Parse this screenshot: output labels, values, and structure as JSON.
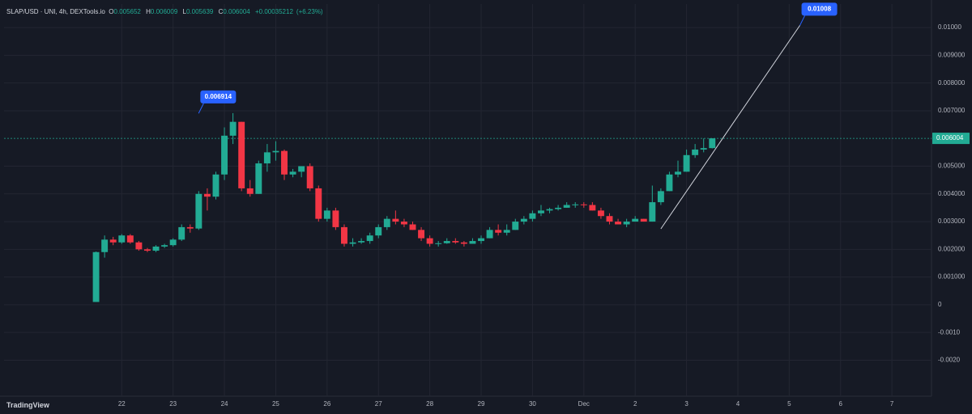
{
  "chart_data": {
    "type": "candlestick",
    "title": "SLAP/USD · UNI, 4h, DEXTools.io",
    "ohlc_letters": [
      "O",
      "H",
      "L",
      "C"
    ],
    "ohlc_values": [
      0.005652,
      0.006009,
      0.005639,
      0.006004
    ],
    "change": {
      "value": 0.00035212,
      "label": "+0.00035212"
    },
    "change_pct": {
      "value": 6.23,
      "label": "(+6.23%)"
    },
    "brand": "TradingView",
    "up_color": "#22ab94",
    "down_color": "#f23645",
    "x": [
      -12,
      -8,
      -4,
      0,
      4,
      8,
      12,
      16,
      20,
      24,
      28,
      32,
      36,
      40,
      44,
      48,
      52,
      56,
      60,
      64,
      68,
      72,
      76,
      80,
      84,
      88,
      92,
      96,
      100,
      104,
      108,
      112,
      116,
      120,
      124,
      128,
      132,
      136,
      140,
      144,
      148,
      152,
      156,
      160,
      164,
      168,
      172,
      176,
      180,
      184,
      188,
      192,
      196,
      200,
      204,
      208,
      212,
      216,
      220,
      224,
      228,
      232,
      236,
      240,
      244,
      248,
      252,
      256,
      260,
      264,
      268,
      272,
      276
    ],
    "open": [
      0.0001,
      0.0019,
      0.00235,
      0.00225,
      0.0025,
      0.00225,
      0.002,
      0.00195,
      0.0021,
      0.00215,
      0.00235,
      0.0028,
      0.00275,
      0.004,
      0.0039,
      0.0047,
      0.0061,
      0.0066,
      0.0042,
      0.004,
      0.0051,
      0.0055,
      0.00555,
      0.0047,
      0.0048,
      0.005,
      0.0042,
      0.0031,
      0.0034,
      0.0028,
      0.0022,
      0.00225,
      0.0023,
      0.0025,
      0.0028,
      0.0031,
      0.003,
      0.0029,
      0.0027,
      0.0024,
      0.0022,
      0.00222,
      0.0023,
      0.00225,
      0.0022,
      0.0023,
      0.0024,
      0.0027,
      0.0026,
      0.0027,
      0.003,
      0.0031,
      0.0033,
      0.0034,
      0.00345,
      0.0035,
      0.0036,
      0.00362,
      0.0036,
      0.0034,
      0.0032,
      0.003,
      0.0029,
      0.003,
      0.0031,
      0.003,
      0.0037,
      0.0041,
      0.0047,
      0.0048,
      0.0054,
      0.0056,
      0.005652
    ],
    "high": [
      0.00192,
      0.0025,
      0.00245,
      0.00255,
      0.00255,
      0.0023,
      0.00205,
      0.00215,
      0.0022,
      0.0024,
      0.0029,
      0.0029,
      0.0041,
      0.0042,
      0.0048,
      0.0064,
      0.006914,
      0.0066,
      0.0045,
      0.0052,
      0.0058,
      0.0059,
      0.0056,
      0.0049,
      0.005,
      0.0051,
      0.0043,
      0.0035,
      0.0035,
      0.0029,
      0.0024,
      0.0024,
      0.0026,
      0.0029,
      0.0032,
      0.0034,
      0.0031,
      0.003,
      0.0028,
      0.0025,
      0.0023,
      0.0024,
      0.0024,
      0.0023,
      0.0024,
      0.0025,
      0.0028,
      0.0029,
      0.0029,
      0.0031,
      0.0032,
      0.0034,
      0.0036,
      0.0035,
      0.0036,
      0.0037,
      0.0037,
      0.0037,
      0.0037,
      0.0035,
      0.0033,
      0.0031,
      0.0031,
      0.0032,
      0.0031,
      0.0043,
      0.0042,
      0.0048,
      0.0052,
      0.0056,
      0.0058,
      0.006,
      0.006009
    ],
    "low": [
      0.0001,
      0.0017,
      0.00215,
      0.0022,
      0.0022,
      0.00195,
      0.0019,
      0.0019,
      0.00205,
      0.0021,
      0.0023,
      0.0026,
      0.0027,
      0.0034,
      0.0038,
      0.0045,
      0.0058,
      0.0041,
      0.0039,
      0.004,
      0.0048,
      0.0052,
      0.0045,
      0.0046,
      0.0046,
      0.0041,
      0.003,
      0.003,
      0.0027,
      0.0021,
      0.0021,
      0.0022,
      0.0022,
      0.0024,
      0.0027,
      0.0029,
      0.0028,
      0.0027,
      0.0023,
      0.0021,
      0.0021,
      0.0022,
      0.0022,
      0.0021,
      0.0022,
      0.0022,
      0.0024,
      0.0025,
      0.0025,
      0.0027,
      0.0029,
      0.003,
      0.0032,
      0.0033,
      0.0034,
      0.0035,
      0.0035,
      0.0035,
      0.0034,
      0.0031,
      0.0029,
      0.0029,
      0.0028,
      0.003,
      0.003,
      0.003,
      0.0036,
      0.0041,
      0.0046,
      0.0048,
      0.0053,
      0.0055,
      0.005639
    ],
    "close": [
      0.0019,
      0.00235,
      0.00225,
      0.0025,
      0.00225,
      0.002,
      0.00195,
      0.0021,
      0.00215,
      0.00235,
      0.0028,
      0.00275,
      0.004,
      0.0039,
      0.0047,
      0.0061,
      0.0066,
      0.0042,
      0.004,
      0.0051,
      0.0055,
      0.00555,
      0.0047,
      0.0048,
      0.005,
      0.0042,
      0.0031,
      0.0034,
      0.0028,
      0.0022,
      0.00225,
      0.0023,
      0.0025,
      0.0028,
      0.0031,
      0.003,
      0.0029,
      0.0027,
      0.0024,
      0.0022,
      0.00222,
      0.0023,
      0.00225,
      0.0022,
      0.0023,
      0.0024,
      0.0027,
      0.0026,
      0.0027,
      0.003,
      0.0031,
      0.0033,
      0.0034,
      0.00345,
      0.0035,
      0.0036,
      0.00362,
      0.0036,
      0.0034,
      0.0032,
      0.003,
      0.0029,
      0.003,
      0.0031,
      0.003,
      0.0037,
      0.0041,
      0.0047,
      0.0048,
      0.0054,
      0.0056,
      0.005652,
      0.006004
    ],
    "xlim": [
      -55,
      378.5
    ],
    "ylim": [
      -0.0033,
      0.01085
    ],
    "xticks": [
      {
        "value": 0,
        "label": "22"
      },
      {
        "value": 24,
        "label": "23"
      },
      {
        "value": 48,
        "label": "24"
      },
      {
        "value": 72,
        "label": "25"
      },
      {
        "value": 96,
        "label": "26"
      },
      {
        "value": 120,
        "label": "27"
      },
      {
        "value": 144,
        "label": "28"
      },
      {
        "value": 168,
        "label": "29"
      },
      {
        "value": 192,
        "label": "30"
      },
      {
        "value": 216,
        "label": "Dec"
      },
      {
        "value": 240,
        "label": "2"
      },
      {
        "value": 264,
        "label": "3"
      },
      {
        "value": 288,
        "label": "4"
      },
      {
        "value": 312,
        "label": "5"
      },
      {
        "value": 336,
        "label": "6"
      },
      {
        "value": 360,
        "label": "7"
      }
    ],
    "yticks": [
      {
        "value": 0.01,
        "label": "0.01000"
      },
      {
        "value": 0.009,
        "label": "0.009000"
      },
      {
        "value": 0.008,
        "label": "0.008000"
      },
      {
        "value": 0.007,
        "label": "0.007000"
      },
      {
        "value": 0.005,
        "label": "0.005000"
      },
      {
        "value": 0.004,
        "label": "0.004000"
      },
      {
        "value": 0.003,
        "label": "0.003000"
      },
      {
        "value": 0.002,
        "label": "0.002000"
      },
      {
        "value": 0.001,
        "label": "0.001000"
      },
      0,
      {
        "value": -0.001,
        "label": "-0.0010"
      },
      {
        "value": -0.002,
        "label": "-0.0020"
      }
    ],
    "grid": true,
    "last_price": 0.006004,
    "high_marker": {
      "x": 36,
      "value": 0.006914
    },
    "trend_line": {
      "x": [
        252,
        317
      ],
      "values": [
        0.00274,
        0.01008
      ],
      "color": "#d1d4dc"
    }
  }
}
